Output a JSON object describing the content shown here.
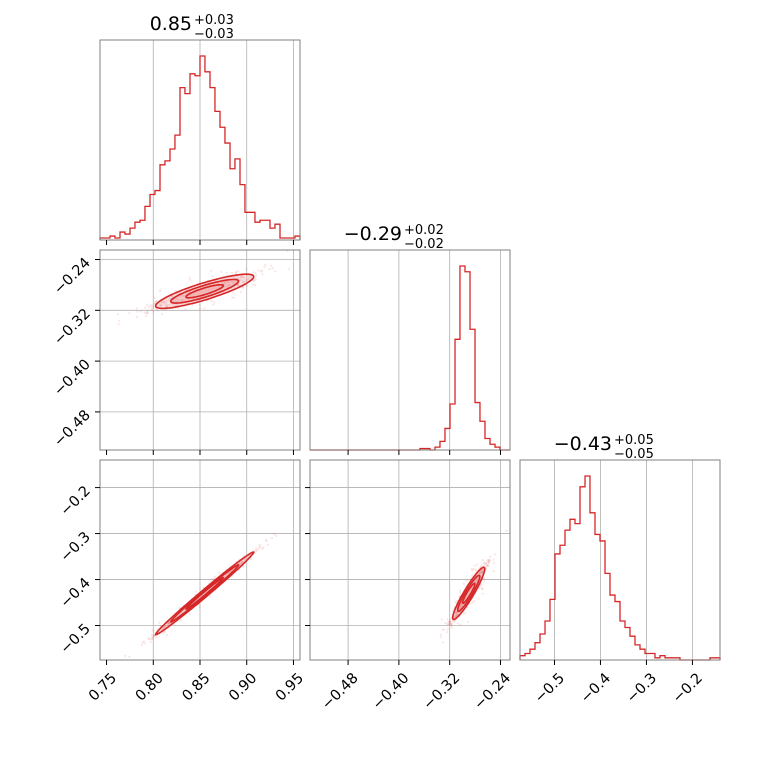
{
  "chart_data": {
    "type": "corner",
    "grid": true,
    "colors": {
      "line": "#d62728",
      "fill": "#f4b6b7",
      "grid": "#b0b0b0",
      "frame": "#808080"
    },
    "parameters": [
      {
        "title": {
          "median": "0.85",
          "plus": "+0.03",
          "minus": "−0.03"
        },
        "range": [
          0.743,
          0.957
        ],
        "ticks": [
          {
            "v": 0.75,
            "label": "0.75"
          },
          {
            "v": 0.8,
            "label": "0.80"
          },
          {
            "v": 0.85,
            "label": "0.85"
          },
          {
            "v": 0.9,
            "label": "0.90"
          },
          {
            "v": 0.95,
            "label": "0.95"
          }
        ],
        "gridlines": [
          0.8,
          0.85,
          0.9,
          0.95
        ],
        "histogram": {
          "bins": [
            0.743,
            0.7483,
            0.7537,
            0.759,
            0.7644,
            0.7697,
            0.7751,
            0.7804,
            0.7858,
            0.7911,
            0.7965,
            0.8018,
            0.8072,
            0.8125,
            0.8179,
            0.8232,
            0.8286,
            0.8339,
            0.8393,
            0.8446,
            0.85,
            0.8553,
            0.8607,
            0.866,
            0.8714,
            0.8767,
            0.8821,
            0.8874,
            0.8928,
            0.8981,
            0.9035,
            0.9088,
            0.9142,
            0.9195,
            0.9249,
            0.9302,
            0.9356,
            0.9409,
            0.9463,
            0.9516,
            0.957
          ],
          "counts": [
            1,
            1,
            2,
            1,
            4,
            3,
            6,
            9,
            10,
            17,
            23,
            25,
            38,
            40,
            46,
            53,
            77,
            74,
            84,
            83,
            93,
            85,
            77,
            65,
            57,
            49,
            36,
            41,
            28,
            14,
            14,
            9,
            10,
            10,
            6,
            8,
            1,
            1,
            1,
            2
          ]
        }
      },
      {
        "title": {
          "median": "−0.29",
          "plus": "+0.02",
          "minus": "−0.02"
        },
        "range": [
          -0.54,
          -0.225
        ],
        "ticks": [
          {
            "v": -0.48,
            "label": "−0.48"
          },
          {
            "v": -0.4,
            "label": "−0.40"
          },
          {
            "v": -0.32,
            "label": "−0.32"
          },
          {
            "v": -0.24,
            "label": "−0.24"
          }
        ],
        "gridlines": [
          -0.48,
          -0.4,
          -0.32,
          -0.24
        ],
        "histogram": {
          "bins": [
            -0.54,
            -0.5321,
            -0.5243,
            -0.5164,
            -0.5085,
            -0.5006,
            -0.4928,
            -0.4849,
            -0.477,
            -0.4691,
            -0.4613,
            -0.4534,
            -0.4455,
            -0.4376,
            -0.4298,
            -0.4219,
            -0.414,
            -0.4061,
            -0.3983,
            -0.3904,
            -0.3825,
            -0.3746,
            -0.3668,
            -0.3589,
            -0.351,
            -0.3431,
            -0.3353,
            -0.3274,
            -0.3195,
            -0.3116,
            -0.3038,
            -0.2959,
            -0.288,
            -0.2801,
            -0.2723,
            -0.2644,
            -0.2565,
            -0.2486,
            -0.2408,
            -0.2329,
            -0.225
          ],
          "counts": [
            0,
            0,
            0,
            0,
            0,
            0,
            0,
            0,
            0,
            0,
            0,
            0,
            0,
            0,
            0,
            0,
            0,
            0,
            0,
            0,
            0,
            0,
            1,
            1,
            0,
            2,
            6,
            15,
            32,
            77,
            128,
            124,
            84,
            33,
            20,
            8,
            4,
            2,
            0,
            0
          ]
        }
      },
      {
        "title": {
          "median": "−0.43",
          "plus": "+0.05",
          "minus": "−0.05"
        },
        "range": [
          -0.575,
          -0.14
        ],
        "ticks": [
          {
            "v": -0.5,
            "label": "−0.5"
          },
          {
            "v": -0.4,
            "label": "−0.4"
          },
          {
            "v": -0.3,
            "label": "−0.3"
          },
          {
            "v": -0.2,
            "label": "−0.2"
          }
        ],
        "gridlines": [
          -0.5,
          -0.4,
          -0.3,
          -0.2
        ],
        "histogram": {
          "bins": [
            -0.575,
            -0.5641,
            -0.5533,
            -0.5424,
            -0.5315,
            -0.5206,
            -0.5098,
            -0.4989,
            -0.488,
            -0.4771,
            -0.4663,
            -0.4554,
            -0.4445,
            -0.4336,
            -0.4228,
            -0.4119,
            -0.401,
            -0.3901,
            -0.3793,
            -0.3684,
            -0.3575,
            -0.3466,
            -0.3358,
            -0.3249,
            -0.314,
            -0.3031,
            -0.2923,
            -0.2814,
            -0.2705,
            -0.2596,
            -0.2488,
            -0.2379,
            -0.227,
            -0.2161,
            -0.2053,
            -0.1944,
            -0.1835,
            -0.1726,
            -0.1618,
            -0.1509,
            -0.14
          ],
          "counts": [
            2,
            3,
            5,
            8,
            12,
            18,
            28,
            49,
            53,
            60,
            65,
            63,
            80,
            85,
            68,
            58,
            55,
            40,
            30,
            27,
            18,
            15,
            11,
            7,
            5,
            3,
            3,
            1,
            2,
            1,
            1,
            1,
            0,
            0,
            0,
            0,
            0,
            0,
            1,
            1
          ]
        }
      }
    ],
    "pairs": [
      {
        "x": 0,
        "y": 1,
        "slope": 0.44,
        "x0": 0.855,
        "y0": -0.29,
        "sdx": 0.025,
        "sd_perp": 0.0055
      },
      {
        "x": 0,
        "y": 2,
        "slope": 1.7,
        "x0": 0.855,
        "y0": -0.43,
        "sdx": 0.025,
        "sd_perp": 0.004
      },
      {
        "x": 1,
        "y": 2,
        "slope": 2.1,
        "x0": -0.29,
        "y0": -0.43,
        "sdx": 0.012,
        "sd_perp": 0.008
      }
    ]
  }
}
